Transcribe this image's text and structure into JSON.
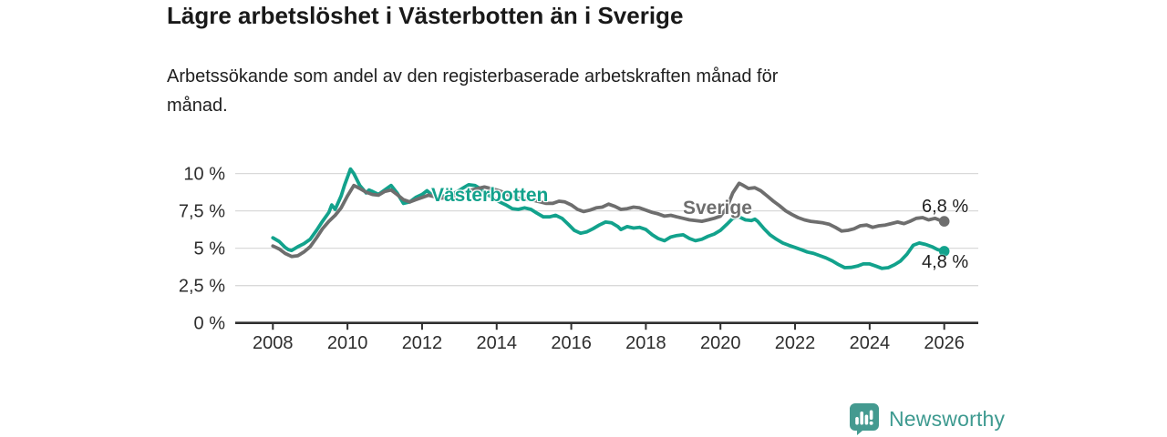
{
  "header": {
    "title": "Lägre arbetslöshet i Västerbotten än i Sverige",
    "subtitle_line1": "Arbetssökande som andel av den registerbaserade arbetskraften månad för",
    "subtitle_line2": "månad."
  },
  "chart_data": {
    "type": "line",
    "title": "Lägre arbetslöshet i Västerbotten än i Sverige",
    "subtitle": "Arbetssökande som andel av den registerbaserade arbetskraften månad för månad.",
    "grid": "horizontal gridlines on",
    "legend_position": "inline series labels on lines",
    "x_axis": {
      "ticks": [
        2008,
        2010,
        2012,
        2014,
        2016,
        2018,
        2020,
        2022,
        2024,
        2026
      ],
      "range": [
        2007.0,
        2026.9
      ]
    },
    "y_axis": {
      "unit": "%",
      "range": [
        0,
        10.5
      ],
      "ticks": [
        {
          "value": 0,
          "label": "0 %"
        },
        {
          "value": 2.5,
          "label": "2,5 %"
        },
        {
          "value": 5,
          "label": "5 %"
        },
        {
          "value": 7.5,
          "label": "7,5 %"
        },
        {
          "value": 10,
          "label": "10 %"
        }
      ]
    },
    "series": [
      {
        "name": "Västerbotten",
        "color": "#12a28c",
        "end_value": 4.8,
        "end_label": "4,8 %",
        "points": [
          [
            2008.0,
            5.7
          ],
          [
            2008.17,
            5.45
          ],
          [
            2008.33,
            5.05
          ],
          [
            2008.42,
            4.9
          ],
          [
            2008.5,
            4.85
          ],
          [
            2008.67,
            5.1
          ],
          [
            2008.83,
            5.3
          ],
          [
            2009.0,
            5.6
          ],
          [
            2009.17,
            6.2
          ],
          [
            2009.33,
            6.8
          ],
          [
            2009.5,
            7.4
          ],
          [
            2009.58,
            7.9
          ],
          [
            2009.67,
            7.6
          ],
          [
            2009.83,
            8.5
          ],
          [
            2009.92,
            9.2
          ],
          [
            2010.08,
            10.3
          ],
          [
            2010.17,
            10.0
          ],
          [
            2010.33,
            9.2
          ],
          [
            2010.5,
            8.7
          ],
          [
            2010.58,
            8.9
          ],
          [
            2010.67,
            8.8
          ],
          [
            2010.83,
            8.6
          ],
          [
            2011.0,
            8.9
          ],
          [
            2011.17,
            9.2
          ],
          [
            2011.33,
            8.7
          ],
          [
            2011.5,
            8.0
          ],
          [
            2011.67,
            8.1
          ],
          [
            2011.83,
            8.4
          ],
          [
            2012.0,
            8.6
          ],
          [
            2012.13,
            8.85
          ],
          [
            2012.25,
            8.6
          ],
          [
            2012.42,
            8.45
          ],
          [
            2012.58,
            8.5
          ],
          [
            2012.75,
            8.6
          ],
          [
            2012.92,
            8.75
          ],
          [
            2013.08,
            9.0
          ],
          [
            2013.25,
            9.25
          ],
          [
            2013.42,
            9.2
          ],
          [
            2013.58,
            8.95
          ],
          [
            2013.75,
            8.6
          ],
          [
            2013.92,
            8.35
          ],
          [
            2014.08,
            8.1
          ],
          [
            2014.25,
            7.9
          ],
          [
            2014.42,
            7.65
          ],
          [
            2014.58,
            7.6
          ],
          [
            2014.75,
            7.7
          ],
          [
            2014.92,
            7.6
          ],
          [
            2015.08,
            7.35
          ],
          [
            2015.25,
            7.1
          ],
          [
            2015.42,
            7.1
          ],
          [
            2015.58,
            7.2
          ],
          [
            2015.75,
            7.0
          ],
          [
            2015.92,
            6.6
          ],
          [
            2016.08,
            6.2
          ],
          [
            2016.25,
            6.0
          ],
          [
            2016.42,
            6.1
          ],
          [
            2016.58,
            6.3
          ],
          [
            2016.75,
            6.55
          ],
          [
            2016.92,
            6.75
          ],
          [
            2017.08,
            6.7
          ],
          [
            2017.25,
            6.45
          ],
          [
            2017.33,
            6.25
          ],
          [
            2017.5,
            6.45
          ],
          [
            2017.67,
            6.35
          ],
          [
            2017.83,
            6.4
          ],
          [
            2018.0,
            6.25
          ],
          [
            2018.17,
            5.9
          ],
          [
            2018.33,
            5.65
          ],
          [
            2018.5,
            5.5
          ],
          [
            2018.67,
            5.75
          ],
          [
            2018.83,
            5.85
          ],
          [
            2019.0,
            5.9
          ],
          [
            2019.17,
            5.65
          ],
          [
            2019.33,
            5.5
          ],
          [
            2019.5,
            5.6
          ],
          [
            2019.67,
            5.8
          ],
          [
            2019.83,
            5.95
          ],
          [
            2020.0,
            6.2
          ],
          [
            2020.17,
            6.6
          ],
          [
            2020.33,
            7.0
          ],
          [
            2020.5,
            7.1
          ],
          [
            2020.67,
            6.9
          ],
          [
            2020.83,
            6.85
          ],
          [
            2020.92,
            6.95
          ],
          [
            2021.0,
            6.8
          ],
          [
            2021.17,
            6.3
          ],
          [
            2021.33,
            5.9
          ],
          [
            2021.5,
            5.6
          ],
          [
            2021.67,
            5.35
          ],
          [
            2021.83,
            5.2
          ],
          [
            2022.0,
            5.05
          ],
          [
            2022.17,
            4.9
          ],
          [
            2022.33,
            4.75
          ],
          [
            2022.5,
            4.65
          ],
          [
            2022.67,
            4.5
          ],
          [
            2022.83,
            4.35
          ],
          [
            2023.0,
            4.15
          ],
          [
            2023.17,
            3.9
          ],
          [
            2023.33,
            3.7
          ],
          [
            2023.5,
            3.72
          ],
          [
            2023.67,
            3.8
          ],
          [
            2023.83,
            3.95
          ],
          [
            2024.0,
            3.95
          ],
          [
            2024.17,
            3.8
          ],
          [
            2024.33,
            3.65
          ],
          [
            2024.5,
            3.7
          ],
          [
            2024.67,
            3.9
          ],
          [
            2024.83,
            4.15
          ],
          [
            2025.0,
            4.6
          ],
          [
            2025.17,
            5.2
          ],
          [
            2025.33,
            5.35
          ],
          [
            2025.5,
            5.25
          ],
          [
            2025.67,
            5.1
          ],
          [
            2025.83,
            4.9
          ],
          [
            2026.0,
            4.8
          ]
        ]
      },
      {
        "name": "Sverige",
        "color": "#6e6e6e",
        "end_value": 6.8,
        "end_label": "6,8 %",
        "points": [
          [
            2008.0,
            5.15
          ],
          [
            2008.17,
            4.95
          ],
          [
            2008.33,
            4.65
          ],
          [
            2008.5,
            4.45
          ],
          [
            2008.67,
            4.5
          ],
          [
            2008.83,
            4.75
          ],
          [
            2009.0,
            5.1
          ],
          [
            2009.17,
            5.7
          ],
          [
            2009.33,
            6.3
          ],
          [
            2009.5,
            6.8
          ],
          [
            2009.67,
            7.2
          ],
          [
            2009.83,
            7.7
          ],
          [
            2010.0,
            8.5
          ],
          [
            2010.17,
            9.2
          ],
          [
            2010.33,
            9.0
          ],
          [
            2010.5,
            8.75
          ],
          [
            2010.67,
            8.6
          ],
          [
            2010.83,
            8.55
          ],
          [
            2011.0,
            8.8
          ],
          [
            2011.17,
            8.9
          ],
          [
            2011.33,
            8.6
          ],
          [
            2011.5,
            8.25
          ],
          [
            2011.67,
            8.1
          ],
          [
            2011.83,
            8.25
          ],
          [
            2012.0,
            8.4
          ],
          [
            2012.17,
            8.55
          ],
          [
            2012.33,
            8.45
          ],
          [
            2012.5,
            8.35
          ],
          [
            2012.67,
            8.4
          ],
          [
            2012.83,
            8.5
          ],
          [
            2013.0,
            8.6
          ],
          [
            2013.17,
            8.75
          ],
          [
            2013.33,
            8.9
          ],
          [
            2013.5,
            9.0
          ],
          [
            2013.67,
            9.1
          ],
          [
            2013.83,
            9.0
          ],
          [
            2014.0,
            8.9
          ],
          [
            2014.17,
            8.75
          ],
          [
            2014.33,
            8.55
          ],
          [
            2014.5,
            8.4
          ],
          [
            2014.67,
            8.3
          ],
          [
            2014.83,
            8.25
          ],
          [
            2015.0,
            8.2
          ],
          [
            2015.17,
            8.1
          ],
          [
            2015.33,
            8.0
          ],
          [
            2015.5,
            8.0
          ],
          [
            2015.67,
            8.15
          ],
          [
            2015.83,
            8.1
          ],
          [
            2016.0,
            7.9
          ],
          [
            2016.17,
            7.6
          ],
          [
            2016.33,
            7.45
          ],
          [
            2016.5,
            7.55
          ],
          [
            2016.67,
            7.7
          ],
          [
            2016.83,
            7.75
          ],
          [
            2017.0,
            7.95
          ],
          [
            2017.17,
            7.8
          ],
          [
            2017.33,
            7.6
          ],
          [
            2017.5,
            7.65
          ],
          [
            2017.67,
            7.75
          ],
          [
            2017.83,
            7.7
          ],
          [
            2018.0,
            7.55
          ],
          [
            2018.17,
            7.4
          ],
          [
            2018.33,
            7.3
          ],
          [
            2018.5,
            7.15
          ],
          [
            2018.67,
            7.2
          ],
          [
            2018.83,
            7.1
          ],
          [
            2019.0,
            7.0
          ],
          [
            2019.17,
            6.9
          ],
          [
            2019.33,
            6.85
          ],
          [
            2019.5,
            6.8
          ],
          [
            2019.67,
            6.9
          ],
          [
            2019.83,
            7.0
          ],
          [
            2020.0,
            7.15
          ],
          [
            2020.17,
            7.7
          ],
          [
            2020.33,
            8.7
          ],
          [
            2020.5,
            9.35
          ],
          [
            2020.58,
            9.25
          ],
          [
            2020.75,
            9.0
          ],
          [
            2020.92,
            9.05
          ],
          [
            2021.08,
            8.85
          ],
          [
            2021.25,
            8.5
          ],
          [
            2021.42,
            8.15
          ],
          [
            2021.58,
            7.85
          ],
          [
            2021.75,
            7.5
          ],
          [
            2021.92,
            7.25
          ],
          [
            2022.08,
            7.05
          ],
          [
            2022.25,
            6.9
          ],
          [
            2022.42,
            6.8
          ],
          [
            2022.58,
            6.75
          ],
          [
            2022.75,
            6.7
          ],
          [
            2022.92,
            6.6
          ],
          [
            2023.08,
            6.4
          ],
          [
            2023.25,
            6.15
          ],
          [
            2023.42,
            6.2
          ],
          [
            2023.58,
            6.3
          ],
          [
            2023.75,
            6.5
          ],
          [
            2023.92,
            6.55
          ],
          [
            2024.08,
            6.4
          ],
          [
            2024.25,
            6.5
          ],
          [
            2024.42,
            6.55
          ],
          [
            2024.58,
            6.65
          ],
          [
            2024.75,
            6.75
          ],
          [
            2024.92,
            6.65
          ],
          [
            2025.08,
            6.8
          ],
          [
            2025.25,
            7.0
          ],
          [
            2025.42,
            7.05
          ],
          [
            2025.58,
            6.9
          ],
          [
            2025.75,
            7.0
          ],
          [
            2025.9,
            6.85
          ],
          [
            2026.0,
            6.8
          ]
        ]
      }
    ],
    "colors": {
      "vasterbotten_line": "#12a28c",
      "sverige_line": "#6e6e6e",
      "gridline": "#d9d9d9",
      "axis": "#2f2f2f",
      "text": "#1f1f1f"
    }
  },
  "footer": {
    "brand": "Newsworthy",
    "brand_color": "#3e9a90",
    "logo_icon": "newsworthy-bar-chart-bubble-icon"
  }
}
